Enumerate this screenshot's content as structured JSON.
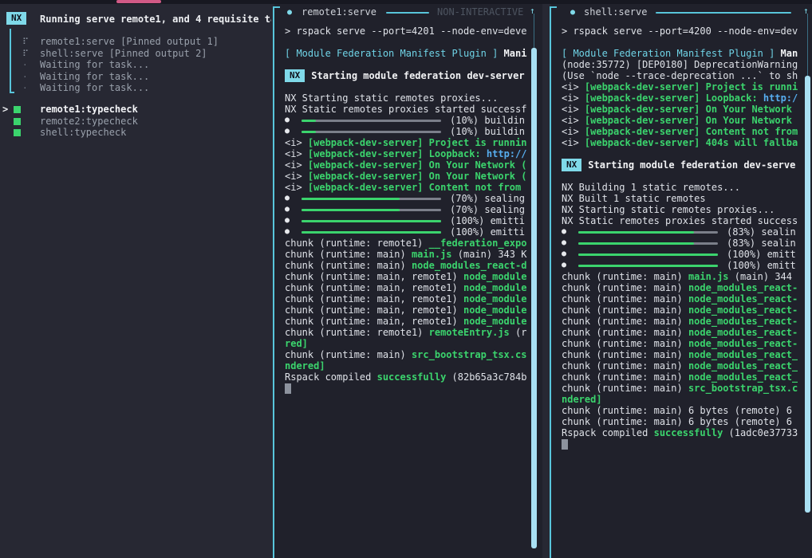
{
  "colors": {
    "background": "#272833",
    "pane_background": "#20212b",
    "accent_cyan": "#7fd9e9",
    "border_cyan": "#58c5db",
    "green": "#3bd46d",
    "link_blue": "#57aef0",
    "pink_progress": "#d15a86",
    "scrollbar_thumb": "#a9e0f3"
  },
  "left_panel": {
    "badge": "NX",
    "title": "Running serve remote1, and 4 requisite ta",
    "tasks": [
      {
        "icon": "spinner",
        "glyph": "⠏",
        "label": "remote1:serve [Pinned output 1]"
      },
      {
        "icon": "spinner",
        "glyph": "⠏",
        "label": "shell:serve [Pinned output 2]"
      },
      {
        "icon": "dot",
        "glyph": "·",
        "label": "Waiting for task..."
      },
      {
        "icon": "dot",
        "glyph": "·",
        "label": "Waiting for task..."
      },
      {
        "icon": "dot",
        "glyph": "·",
        "label": "Waiting for task..."
      }
    ],
    "cursor_glyph": ">",
    "typecheck_tasks": [
      {
        "selected": true,
        "label": "remote1:typecheck"
      },
      {
        "selected": false,
        "label": "remote2:typecheck"
      },
      {
        "selected": false,
        "label": "shell:typecheck"
      }
    ]
  },
  "middle_panel": {
    "header": {
      "bullet": "●",
      "title": "remote1:serve",
      "mode": "NON-INTERACTIVE",
      "scroll_up": "↑"
    },
    "lines": [
      {
        "k": "t",
        "s": [
          [
            "> rspack serve --port=4201 --node-env=deve",
            "w"
          ]
        ]
      },
      {
        "k": "x"
      },
      {
        "k": "t",
        "s": [
          [
            "[ Module Federation Manifest Plugin ]",
            "cy"
          ],
          [
            " ",
            "w"
          ],
          [
            "Mani",
            "wb"
          ]
        ]
      },
      {
        "k": "x"
      },
      {
        "k": "b",
        "badge": "NX",
        "text": "Starting module federation dev-server"
      },
      {
        "k": "x"
      },
      {
        "k": "t",
        "s": [
          [
            "NX Starting static remotes proxies...",
            "w"
          ]
        ]
      },
      {
        "k": "t",
        "s": [
          [
            "NX Static remotes proxies started successf",
            "w"
          ]
        ]
      },
      {
        "k": "p",
        "pct": 10,
        "bullet": "●",
        "tail": "(10%) buildin"
      },
      {
        "k": "p",
        "pct": 10,
        "bullet": "●",
        "tail": "(10%) buildin"
      },
      {
        "k": "t",
        "s": [
          [
            "<i> ",
            "w"
          ],
          [
            "[webpack-dev-server]",
            "g"
          ],
          [
            " ",
            "w"
          ],
          [
            "Project is runnin",
            "g"
          ]
        ]
      },
      {
        "k": "t",
        "s": [
          [
            "<i> ",
            "w"
          ],
          [
            "[webpack-dev-server]",
            "g"
          ],
          [
            " ",
            "w"
          ],
          [
            "Loopback: ",
            "g"
          ],
          [
            "http://",
            "bl"
          ]
        ]
      },
      {
        "k": "t",
        "s": [
          [
            "<i> ",
            "w"
          ],
          [
            "[webpack-dev-server]",
            "g"
          ],
          [
            " ",
            "w"
          ],
          [
            "On Your Network (",
            "g"
          ]
        ]
      },
      {
        "k": "t",
        "s": [
          [
            "<i> ",
            "w"
          ],
          [
            "[webpack-dev-server]",
            "g"
          ],
          [
            " ",
            "w"
          ],
          [
            "On Your Network (",
            "g"
          ]
        ]
      },
      {
        "k": "t",
        "s": [
          [
            "<i> ",
            "w"
          ],
          [
            "[webpack-dev-server]",
            "g"
          ],
          [
            " ",
            "w"
          ],
          [
            "Content not from",
            "g"
          ]
        ]
      },
      {
        "k": "p",
        "pct": 70,
        "bullet": "●",
        "tail": "(70%) sealing"
      },
      {
        "k": "p",
        "pct": 70,
        "bullet": "●",
        "tail": "(70%) sealing"
      },
      {
        "k": "p",
        "pct": 100,
        "bullet": "●",
        "tail": "(100%) emitti"
      },
      {
        "k": "p",
        "pct": 100,
        "bullet": "●",
        "tail": "(100%) emitti"
      },
      {
        "k": "t",
        "s": [
          [
            "chunk (runtime: remote1) ",
            "w"
          ],
          [
            "__federation_expo",
            "g"
          ]
        ]
      },
      {
        "k": "t",
        "s": [
          [
            "chunk (runtime: main) ",
            "w"
          ],
          [
            "main.js",
            "g"
          ],
          [
            " (main) 343 K",
            "w"
          ]
        ]
      },
      {
        "k": "t",
        "s": [
          [
            "chunk (runtime: main) ",
            "w"
          ],
          [
            "node_modules_react-d",
            "g"
          ]
        ]
      },
      {
        "k": "t",
        "s": [
          [
            "chunk (runtime: main, remote1) ",
            "w"
          ],
          [
            "node_module",
            "g"
          ]
        ]
      },
      {
        "k": "t",
        "s": [
          [
            "chunk (runtime: main, remote1) ",
            "w"
          ],
          [
            "node_module",
            "g"
          ]
        ]
      },
      {
        "k": "t",
        "s": [
          [
            "chunk (runtime: main, remote1) ",
            "w"
          ],
          [
            "node_module",
            "g"
          ]
        ]
      },
      {
        "k": "t",
        "s": [
          [
            "chunk (runtime: main, remote1) ",
            "w"
          ],
          [
            "node_module",
            "g"
          ]
        ]
      },
      {
        "k": "t",
        "s": [
          [
            "chunk (runtime: main, remote1) ",
            "w"
          ],
          [
            "node_module",
            "g"
          ]
        ]
      },
      {
        "k": "t",
        "s": [
          [
            "chunk (runtime: remote1) ",
            "w"
          ],
          [
            "remoteEntry.js",
            "g"
          ],
          [
            " (r",
            "w"
          ]
        ]
      },
      {
        "k": "t",
        "s": [
          [
            "red]",
            "g"
          ]
        ]
      },
      {
        "k": "t",
        "s": [
          [
            "chunk (runtime: main) ",
            "w"
          ],
          [
            "src_bootstrap_tsx.cs",
            "g"
          ]
        ]
      },
      {
        "k": "t",
        "s": [
          [
            "ndered]",
            "g"
          ]
        ]
      },
      {
        "k": "t",
        "s": [
          [
            "Rspack compiled ",
            "w"
          ],
          [
            "successfully",
            "g"
          ],
          [
            " (82b65a3c784b",
            "w"
          ]
        ]
      },
      {
        "k": "c"
      }
    ]
  },
  "right_panel": {
    "header": {
      "bullet": "●",
      "title": "shell:serve",
      "scroll_up": "↑"
    },
    "lines": [
      {
        "k": "t",
        "s": [
          [
            "> rspack serve --port=4200 --node-env=dev",
            "w"
          ]
        ]
      },
      {
        "k": "x"
      },
      {
        "k": "t",
        "s": [
          [
            "[ Module Federation Manifest Plugin ]",
            "cy"
          ],
          [
            " ",
            "w"
          ],
          [
            "Man",
            "wb"
          ]
        ]
      },
      {
        "k": "t",
        "s": [
          [
            "(node:35772) [DEP0180] DeprecationWarning",
            "w"
          ]
        ]
      },
      {
        "k": "t",
        "s": [
          [
            "(Use `node --trace-deprecation ...` to sh",
            "w"
          ]
        ]
      },
      {
        "k": "t",
        "s": [
          [
            "<i> ",
            "w"
          ],
          [
            "[webpack-dev-server]",
            "g"
          ],
          [
            " ",
            "w"
          ],
          [
            "Project is runni",
            "g"
          ]
        ]
      },
      {
        "k": "t",
        "s": [
          [
            "<i> ",
            "w"
          ],
          [
            "[webpack-dev-server]",
            "g"
          ],
          [
            " ",
            "w"
          ],
          [
            "Loopback: ",
            "g"
          ],
          [
            "http:/",
            "bl"
          ]
        ]
      },
      {
        "k": "t",
        "s": [
          [
            "<i> ",
            "w"
          ],
          [
            "[webpack-dev-server]",
            "g"
          ],
          [
            " ",
            "w"
          ],
          [
            "On Your Network",
            "g"
          ]
        ]
      },
      {
        "k": "t",
        "s": [
          [
            "<i> ",
            "w"
          ],
          [
            "[webpack-dev-server]",
            "g"
          ],
          [
            " ",
            "w"
          ],
          [
            "On Your Network",
            "g"
          ]
        ]
      },
      {
        "k": "t",
        "s": [
          [
            "<i> ",
            "w"
          ],
          [
            "[webpack-dev-server]",
            "g"
          ],
          [
            " ",
            "w"
          ],
          [
            "Content not from",
            "g"
          ]
        ]
      },
      {
        "k": "t",
        "s": [
          [
            "<i> ",
            "w"
          ],
          [
            "[webpack-dev-server]",
            "g"
          ],
          [
            " ",
            "w"
          ],
          [
            "404s will fallba",
            "g"
          ]
        ]
      },
      {
        "k": "x"
      },
      {
        "k": "b",
        "badge": "NX",
        "text": "Starting module federation dev-serve"
      },
      {
        "k": "x"
      },
      {
        "k": "t",
        "s": [
          [
            "NX Building 1 static remotes...",
            "w"
          ]
        ]
      },
      {
        "k": "t",
        "s": [
          [
            "NX Built 1 static remotes",
            "w"
          ]
        ]
      },
      {
        "k": "t",
        "s": [
          [
            "NX Starting static remotes proxies...",
            "w"
          ]
        ]
      },
      {
        "k": "t",
        "s": [
          [
            "NX Static remotes proxies started success",
            "w"
          ]
        ]
      },
      {
        "k": "p",
        "pct": 83,
        "bullet": "●",
        "tail": "(83%) sealin"
      },
      {
        "k": "p",
        "pct": 83,
        "bullet": "●",
        "tail": "(83%) sealin"
      },
      {
        "k": "p",
        "pct": 100,
        "bullet": "●",
        "tail": "(100%) emitt"
      },
      {
        "k": "p",
        "pct": 100,
        "bullet": "●",
        "tail": "(100%) emitt"
      },
      {
        "k": "t",
        "s": [
          [
            "chunk (runtime: main) ",
            "w"
          ],
          [
            "main.js",
            "g"
          ],
          [
            " (main) 344",
            "w"
          ]
        ]
      },
      {
        "k": "t",
        "s": [
          [
            "chunk (runtime: main) ",
            "w"
          ],
          [
            "node_modules_react-",
            "g"
          ]
        ]
      },
      {
        "k": "t",
        "s": [
          [
            "chunk (runtime: main) ",
            "w"
          ],
          [
            "node_modules_react-",
            "g"
          ]
        ]
      },
      {
        "k": "t",
        "s": [
          [
            "chunk (runtime: main) ",
            "w"
          ],
          [
            "node_modules_react-",
            "g"
          ]
        ]
      },
      {
        "k": "t",
        "s": [
          [
            "chunk (runtime: main) ",
            "w"
          ],
          [
            "node_modules_react-",
            "g"
          ]
        ]
      },
      {
        "k": "t",
        "s": [
          [
            "chunk (runtime: main) ",
            "w"
          ],
          [
            "node_modules_react-",
            "g"
          ]
        ]
      },
      {
        "k": "t",
        "s": [
          [
            "chunk (runtime: main) ",
            "w"
          ],
          [
            "node_modules_react-",
            "g"
          ]
        ]
      },
      {
        "k": "t",
        "s": [
          [
            "chunk (runtime: main) ",
            "w"
          ],
          [
            "node_modules_react_",
            "g"
          ]
        ]
      },
      {
        "k": "t",
        "s": [
          [
            "chunk (runtime: main) ",
            "w"
          ],
          [
            "node_modules_react_",
            "g"
          ]
        ]
      },
      {
        "k": "t",
        "s": [
          [
            "chunk (runtime: main) ",
            "w"
          ],
          [
            "node_modules_react_",
            "g"
          ]
        ]
      },
      {
        "k": "t",
        "s": [
          [
            "chunk (runtime: main) ",
            "w"
          ],
          [
            "src_bootstrap_tsx.c",
            "g"
          ]
        ]
      },
      {
        "k": "t",
        "s": [
          [
            "ndered]",
            "g"
          ]
        ]
      },
      {
        "k": "t",
        "s": [
          [
            "chunk (runtime: main) 6 bytes (remote) 6",
            "w"
          ]
        ]
      },
      {
        "k": "t",
        "s": [
          [
            "chunk (runtime: main) 6 bytes (remote) 6",
            "w"
          ]
        ]
      },
      {
        "k": "t",
        "s": [
          [
            "Rspack compiled ",
            "w"
          ],
          [
            "successfully",
            "g"
          ],
          [
            " (1adc0e37733",
            "w"
          ]
        ]
      },
      {
        "k": "c"
      }
    ]
  }
}
